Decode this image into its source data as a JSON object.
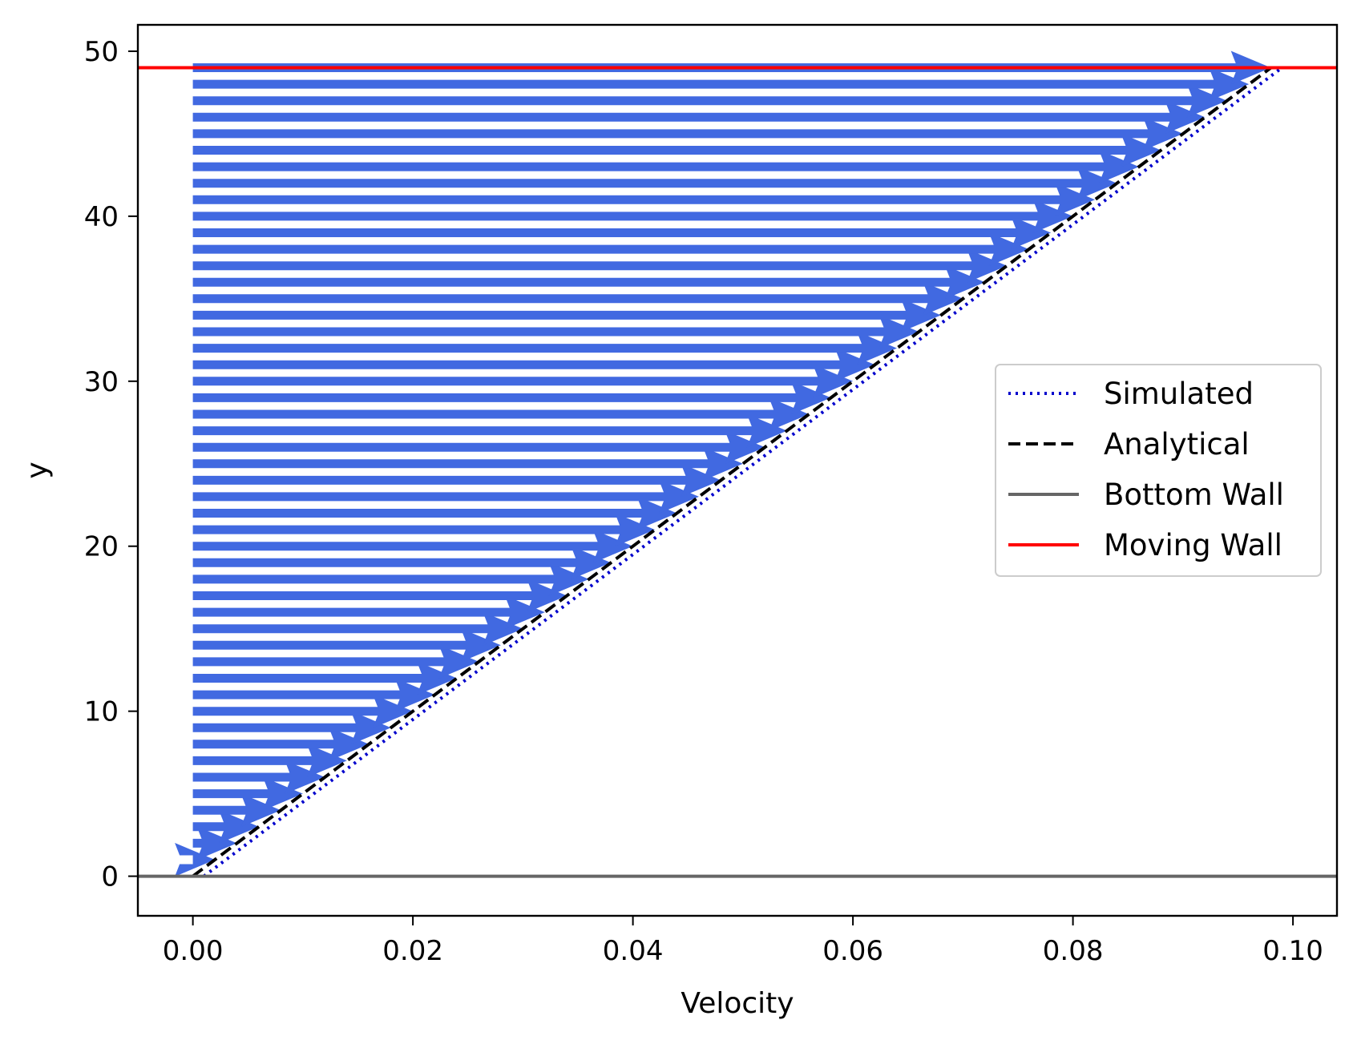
{
  "chart_data": {
    "type": "line",
    "title": "",
    "xlabel": "Velocity",
    "ylabel": "y",
    "xlim": [
      -0.005,
      0.104
    ],
    "ylim": [
      -2.4,
      51.6
    ],
    "xticks": [
      "0.00",
      "0.02",
      "0.04",
      "0.06",
      "0.08",
      "0.10"
    ],
    "xtick_values": [
      0.0,
      0.02,
      0.04,
      0.06,
      0.08,
      0.1
    ],
    "yticks": [
      "0",
      "10",
      "20",
      "30",
      "40",
      "50"
    ],
    "ytick_values": [
      0,
      10,
      20,
      30,
      40,
      50
    ],
    "grid": false,
    "legend_position": "center-right",
    "quiver": {
      "color": "#4169e1",
      "y_start": 1,
      "y_end": 49,
      "y_step": 1,
      "u_per_y": 0.002,
      "x_origin": 0.0
    },
    "series": [
      {
        "name": "Simulated",
        "style": "dotted",
        "color": "#0000cc",
        "x": [
          0.001,
          0.099
        ],
        "y": [
          0,
          49
        ]
      },
      {
        "name": "Analytical",
        "style": "dashed",
        "color": "#000000",
        "x": [
          0.0,
          0.098
        ],
        "y": [
          0,
          49
        ]
      },
      {
        "name": "Bottom Wall",
        "style": "solid",
        "color": "#666666",
        "hline": 0
      },
      {
        "name": "Moving Wall",
        "style": "solid",
        "color": "#ff0000",
        "hline": 49
      }
    ]
  }
}
